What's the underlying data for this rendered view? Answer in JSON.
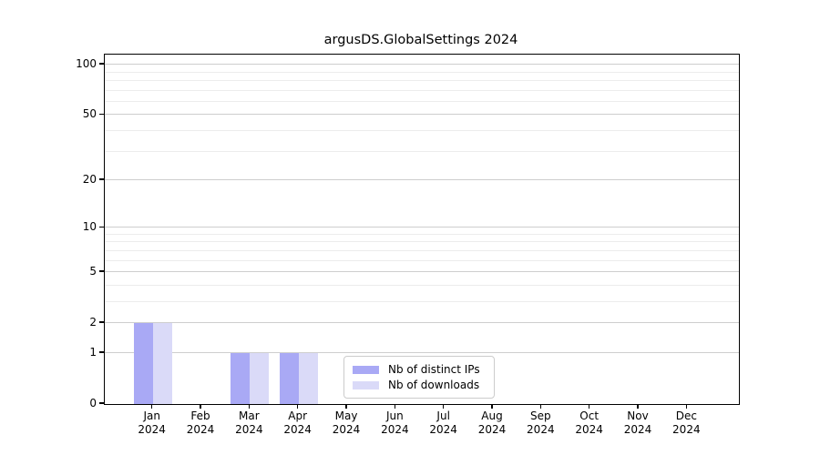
{
  "chart_data": {
    "type": "bar",
    "title": "argusDS.GlobalSettings 2024",
    "categories": [
      "Jan",
      "Feb",
      "Mar",
      "Apr",
      "May",
      "Jun",
      "Jul",
      "Aug",
      "Sep",
      "Oct",
      "Nov",
      "Dec"
    ],
    "category_year": "2024",
    "series": [
      {
        "name": "Nb of distinct IPs",
        "color": "#a9a9f5",
        "values": [
          2,
          0,
          1,
          1,
          0,
          0,
          0,
          0,
          0,
          0,
          0,
          0
        ]
      },
      {
        "name": "Nb of downloads",
        "color": "#dadaf8",
        "values": [
          2,
          0,
          1,
          1,
          0,
          0,
          0,
          0,
          0,
          0,
          0,
          0
        ]
      }
    ],
    "yaxis": {
      "scale": "log1p",
      "ticks": [
        0,
        1,
        2,
        5,
        10,
        20,
        50,
        100
      ],
      "minor_ticks": [
        3,
        4,
        6,
        7,
        8,
        9,
        30,
        40,
        60,
        70,
        80,
        90
      ],
      "log_span": 2.064,
      "ylim": [
        0,
        115
      ]
    },
    "xlabel": "",
    "ylabel": "",
    "grid": true,
    "legend_position": "lower center"
  },
  "colors": {
    "grid_major": "#cecece",
    "grid_minor": "#ececec",
    "spine": "#000000",
    "background": "#ffffff"
  }
}
